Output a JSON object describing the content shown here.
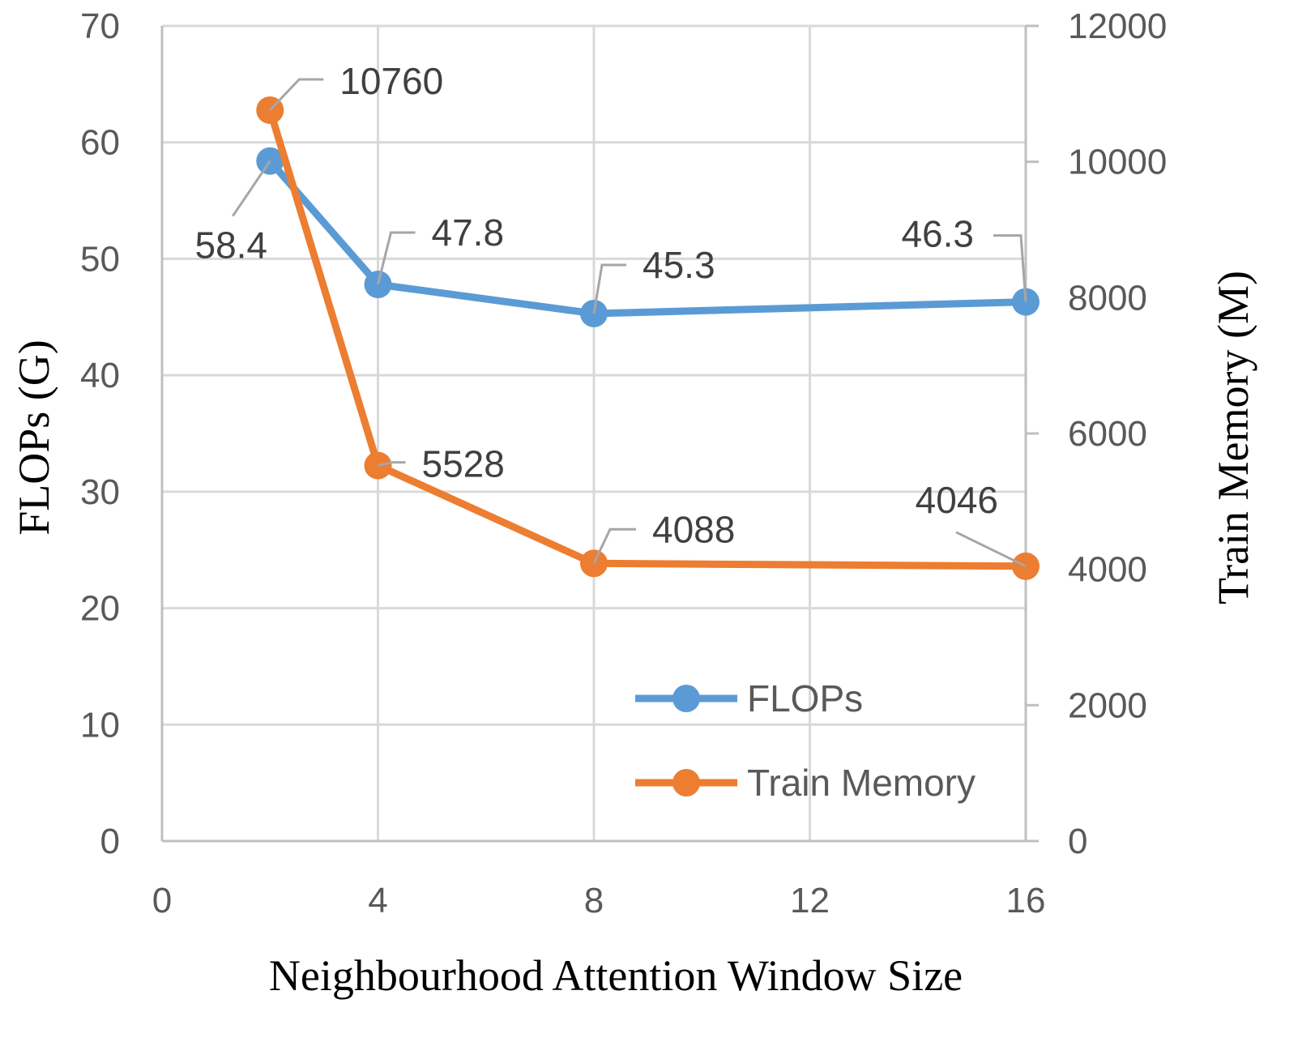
{
  "chart_data": {
    "type": "line",
    "title": "",
    "xlabel": "Neighbourhood Attention Window Size",
    "ylabel": "FLOPs (G)",
    "y2label": "Train Memory (M)",
    "xlim": [
      0,
      16
    ],
    "ylim": [
      0,
      70
    ],
    "y2lim": [
      0,
      12000
    ],
    "xticks": [
      0,
      4,
      8,
      12,
      16
    ],
    "yticks": [
      0,
      10,
      20,
      30,
      40,
      50,
      60,
      70
    ],
    "y2ticks": [
      0,
      2000,
      4000,
      6000,
      8000,
      10000,
      12000
    ],
    "x": [
      2,
      4,
      8,
      16
    ],
    "grid": true,
    "legend_position": "bottom-right",
    "series": [
      {
        "name": "FLOPs",
        "axis": "left",
        "color": "#5B9BD5",
        "values": [
          58.4,
          47.8,
          45.3,
          46.3
        ],
        "labels": [
          "58.4",
          "47.8",
          "45.3",
          "46.3"
        ]
      },
      {
        "name": "Train Memory",
        "axis": "right",
        "color": "#ED7D31",
        "values": [
          10760,
          5528,
          4088,
          4046
        ],
        "labels": [
          "10760",
          "5528",
          "4088",
          "4046"
        ]
      }
    ]
  }
}
